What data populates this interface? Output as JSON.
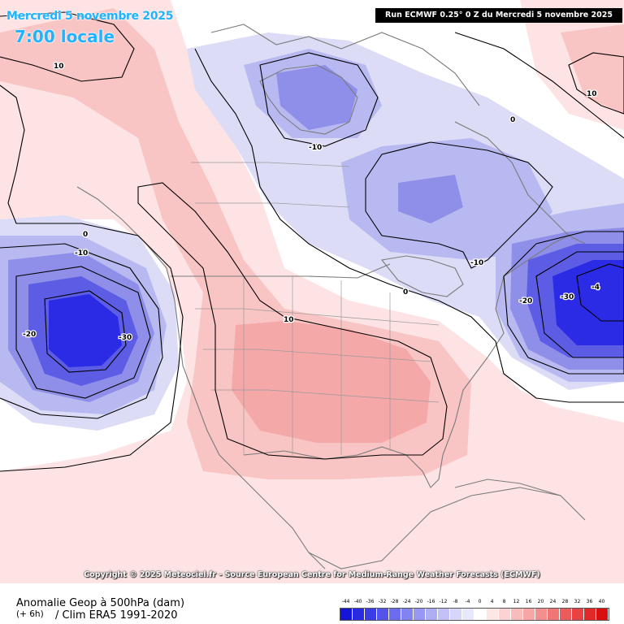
{
  "header": {
    "date": "Mercredi 5 novembre 2025",
    "time": "7:00 locale",
    "run": "Run ECMWF 0.25° 0 Z du Mercredi 5 novembre 2025"
  },
  "copyright": "Copyright © 2025 Meteociel.fr - Source European Centre for Medium-Range Weather Forecasts (ECMWF)",
  "footer": {
    "parameter": "Anomalie Geop à 500hPa (dam)",
    "lead": "(+ 6h)",
    "climatology": "/ Clim ERA5 1991-2020"
  },
  "colors": {
    "ocean_base": "#ffffff",
    "pos_1": "#fde3e3",
    "pos_2": "#f9c4c4",
    "pos_3": "#f5a8a8",
    "neg_1": "#dcdcf7",
    "neg_2": "#b9b9f1",
    "neg_3": "#8f8fea",
    "neg_4": "#5c5ce5",
    "neg_5": "#2b2be6",
    "contour": "#000000",
    "coastline": "#7b7b7b",
    "title_text": "#1fb4ff"
  },
  "contour_labels": [
    {
      "text": "10",
      "region": "north-pacific"
    },
    {
      "text": "-10",
      "region": "hudson-bay"
    },
    {
      "text": "0",
      "region": "labrador"
    },
    {
      "text": "10",
      "region": "north-atlantic"
    },
    {
      "text": "0",
      "region": "pacific-west"
    },
    {
      "text": "-10",
      "region": "pacific-low"
    },
    {
      "text": "-20",
      "region": "pacific-low"
    },
    {
      "text": "-30",
      "region": "pacific-low"
    },
    {
      "text": "10",
      "region": "central-us"
    },
    {
      "text": "0",
      "region": "great-lakes"
    },
    {
      "text": "-10",
      "region": "quebec"
    },
    {
      "text": "-20",
      "region": "newfoundland"
    },
    {
      "text": "-30",
      "region": "newfoundland"
    },
    {
      "text": "-4",
      "region": "newfoundland"
    }
  ],
  "legend": {
    "ticks": [
      "-44",
      "-40",
      "-36",
      "-32",
      "-28",
      "-24",
      "-20",
      "-16",
      "-12",
      "-8",
      "-4",
      "0",
      "4",
      "8",
      "12",
      "16",
      "20",
      "24",
      "28",
      "32",
      "36",
      "40"
    ],
    "colors": [
      "#1515d8",
      "#2a2ae0",
      "#3c3ce6",
      "#5454ea",
      "#6c6cee",
      "#8282f0",
      "#9898f3",
      "#aeaef5",
      "#c2c2f8",
      "#d6d6fa",
      "#e8e8fc",
      "#ffffff",
      "#fde6e6",
      "#fcd2d2",
      "#f9bcbc",
      "#f6a6a6",
      "#f38f8f",
      "#f07676",
      "#ec5c5c",
      "#e84242",
      "#e22828",
      "#d81010"
    ]
  }
}
